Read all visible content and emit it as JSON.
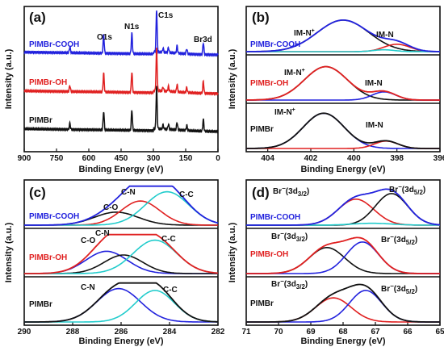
{
  "chart_data": [
    {
      "panel": "(a)",
      "type": "line",
      "xlabel": "Binding Energy (eV)",
      "ylabel": "Intensity (a.u.)",
      "xlim": [
        900,
        0
      ],
      "xticks": [
        "900",
        "750",
        "600",
        "450",
        "300",
        "150",
        "0"
      ],
      "peak_labels": [
        {
          "text": "O1s",
          "x": 531
        },
        {
          "text": "N1s",
          "x": 400
        },
        {
          "text": "C1s",
          "x": 285
        },
        {
          "text": "Br3d",
          "x": 68
        }
      ],
      "series": [
        {
          "name": "PIMBr-COOH",
          "color": "#2222dd",
          "offset": 2.0
        },
        {
          "name": "PIMBr-OH",
          "color": "#e02020",
          "offset": 1.0
        },
        {
          "name": "PIMBr",
          "color": "#111111",
          "offset": 0.0
        }
      ]
    },
    {
      "panel": "(b)",
      "type": "line",
      "xlabel": "Binding Energy (eV)",
      "ylabel": "Intensity (a.u.)",
      "xlim": [
        405,
        396
      ],
      "xticks": [
        "404",
        "402",
        "400",
        "398",
        "396"
      ],
      "series": [
        {
          "name": "PIMBr-COOH",
          "color": "#2222dd",
          "components": [
            {
              "label": "IM-N+",
              "center": 400.5,
              "width": 1.2,
              "height": 0.85,
              "color": "#111111"
            },
            {
              "label": "IM-N",
              "center": 398.0,
              "width": 0.6,
              "height": 0.2,
              "color": "#e02020"
            }
          ],
          "extra_components": [
            {
              "center": 398.6,
              "width": 0.5,
              "height": 0.05,
              "color": "#22cccc"
            }
          ]
        },
        {
          "name": "PIMBr-OH",
          "color": "#e02020",
          "components": [
            {
              "label": "IM-N+",
              "center": 401.3,
              "width": 1.0,
              "height": 0.9,
              "color": "#111111"
            },
            {
              "label": "IM-N",
              "center": 398.6,
              "width": 0.55,
              "height": 0.22,
              "color": "#2222dd"
            }
          ]
        },
        {
          "name": "PIMBr",
          "color": "#111111",
          "components": [
            {
              "label": "IM-N+",
              "center": 401.4,
              "width": 0.95,
              "height": 0.95,
              "color": "#2222dd"
            },
            {
              "label": "IM-N",
              "center": 398.5,
              "width": 0.55,
              "height": 0.2,
              "color": "#e02020"
            }
          ]
        }
      ]
    },
    {
      "panel": "(c)",
      "type": "line",
      "xlabel": "Binding Energy (eV)",
      "ylabel": "Intensity (a.u.)",
      "xlim": [
        290,
        282
      ],
      "xticks": [
        "290",
        "288",
        "286",
        "284",
        "282"
      ],
      "series": [
        {
          "name": "PIMBr-COOH",
          "color": "#2222dd",
          "components": [
            {
              "label": "C-O",
              "center": 286.2,
              "width": 0.9,
              "height": 0.35,
              "color": "#111111"
            },
            {
              "label": "C-N",
              "center": 285.2,
              "width": 0.8,
              "height": 0.65,
              "color": "#e02020"
            },
            {
              "label": "C-C",
              "center": 284.1,
              "width": 0.9,
              "height": 0.9,
              "color": "#22cccc"
            }
          ]
        },
        {
          "name": "PIMBr-OH",
          "color": "#e02020",
          "components": [
            {
              "label": "C-O",
              "center": 286.6,
              "width": 0.85,
              "height": 0.6,
              "color": "#2222dd"
            },
            {
              "label": "C-N",
              "center": 285.9,
              "width": 0.8,
              "height": 0.5,
              "color": "#111111"
            },
            {
              "label": "C-C",
              "center": 284.6,
              "width": 0.9,
              "height": 0.9,
              "color": "#22cccc"
            }
          ]
        },
        {
          "name": "PIMBr",
          "color": "#111111",
          "components": [
            {
              "label": "C-N",
              "center": 286.1,
              "width": 0.9,
              "height": 0.9,
              "color": "#2222dd"
            },
            {
              "label": "C-C",
              "center": 284.6,
              "width": 0.8,
              "height": 0.85,
              "color": "#22cccc"
            }
          ]
        }
      ]
    },
    {
      "panel": "(d)",
      "type": "line",
      "xlabel": "Binding Energy (eV)",
      "ylabel": "Intensity (a.u.)",
      "xlim": [
        71,
        65
      ],
      "xticks": [
        "71",
        "70",
        "69",
        "68",
        "67",
        "66",
        "65"
      ],
      "peak_label_main": "Br",
      "peak_label_sup": "−",
      "peak_label_prefix": "(3d",
      "peak_label_suffix": ")",
      "peak_sub_a": "3/2",
      "peak_sub_b": "5/2",
      "series": [
        {
          "name": "PIMBr-COOH",
          "color": "#2222dd",
          "components": [
            {
              "label": "Br-(3d3/2)",
              "center": 67.6,
              "width": 0.55,
              "height": 0.7,
              "color": "#e02020"
            },
            {
              "label": "Br-(3d5/2)",
              "center": 66.5,
              "width": 0.5,
              "height": 0.85,
              "color": "#111111"
            }
          ],
          "extra_components": [
            {
              "center": 67.1,
              "width": 0.6,
              "height": 0.05,
              "color": "#22cccc"
            }
          ]
        },
        {
          "name": "PIMBr-OH",
          "color": "#e02020",
          "components": [
            {
              "label": "Br-(3d3/2)",
              "center": 68.5,
              "width": 0.55,
              "height": 0.7,
              "color": "#111111"
            },
            {
              "label": "Br-(3d5/2)",
              "center": 67.4,
              "width": 0.5,
              "height": 0.85,
              "color": "#2222dd"
            }
          ]
        },
        {
          "name": "PIMBr",
          "color": "#111111",
          "components": [
            {
              "label": "Br-(3d3/2)",
              "center": 68.3,
              "width": 0.55,
              "height": 0.65,
              "color": "#e02020"
            },
            {
              "label": "Br-(3d5/2)",
              "center": 67.3,
              "width": 0.5,
              "height": 0.85,
              "color": "#2222dd"
            }
          ]
        }
      ]
    }
  ]
}
